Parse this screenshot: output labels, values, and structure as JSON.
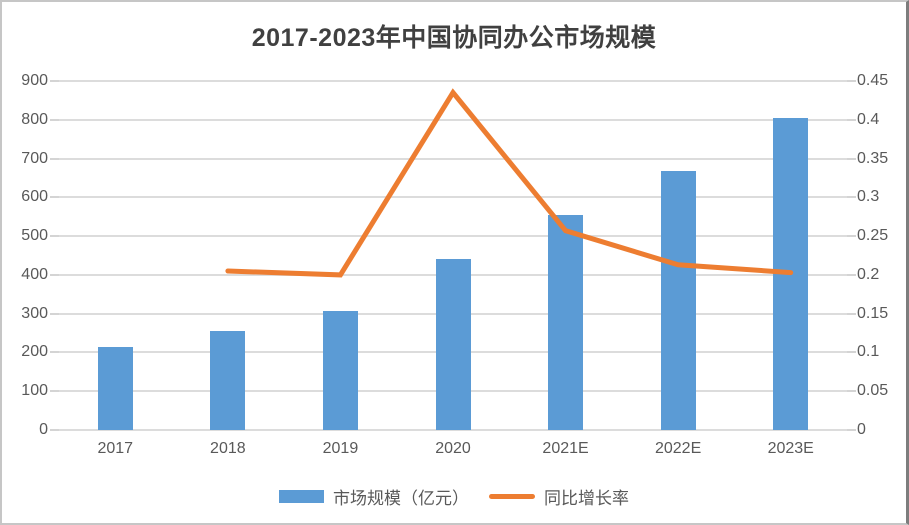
{
  "title": "2017-2023年中国协同办公市场规模",
  "chart_data": {
    "type": "bar",
    "subtype": "bar-line-combo",
    "title": "2017-2023年中国协同办公市场规模",
    "categories": [
      "2017",
      "2018",
      "2019",
      "2020",
      "2021E",
      "2022E",
      "2023E"
    ],
    "series": [
      {
        "name": "市场规模（亿元）",
        "type": "bar",
        "axis": "left",
        "color": "#5B9BD5",
        "values": [
          213,
          256,
          308,
          440,
          555,
          668,
          805
        ]
      },
      {
        "name": "同比增长率",
        "type": "line",
        "axis": "right",
        "color": "#ED7D31",
        "values": [
          null,
          0.205,
          0.2,
          0.435,
          0.257,
          0.213,
          0.203
        ]
      }
    ],
    "left_axis": {
      "min": 0,
      "max": 900,
      "tick_labels": [
        "0",
        "100",
        "200",
        "300",
        "400",
        "500",
        "600",
        "700",
        "800",
        "900"
      ]
    },
    "right_axis": {
      "min": 0,
      "max": 0.45,
      "tick_labels": [
        "0",
        "0.05",
        "0.1",
        "0.15",
        "0.2",
        "0.25",
        "0.3",
        "0.35",
        "0.4",
        "0.45"
      ]
    },
    "grid": true,
    "legend_position": "bottom",
    "xlabel": "",
    "ylabel": ""
  },
  "legend": {
    "items": [
      {
        "label": "市场规模（亿元）",
        "swatch": "bar",
        "color": "#5B9BD5"
      },
      {
        "label": "同比增长率",
        "swatch": "line",
        "color": "#ED7D31"
      }
    ]
  },
  "colors": {
    "bar": "#5B9BD5",
    "line": "#ED7D31",
    "gridline": "#dcdcdc",
    "axis_text": "#595959",
    "title_text": "#404040",
    "frame_light": "#c6c6c6",
    "frame_dark": "#7d7d7d"
  }
}
